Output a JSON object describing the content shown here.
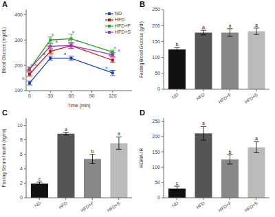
{
  "chart_data": [
    {
      "type": "line",
      "title": "A",
      "xlabel": "Time (min)",
      "ylabel": "Blood Glucose (mg/dL)",
      "x": [
        0,
        30,
        60,
        120
      ],
      "series": [
        {
          "name": "ND",
          "color": "#1a3fcc",
          "values": [
            130,
            228,
            228,
            170
          ],
          "errors": [
            8,
            8,
            8,
            10
          ],
          "annotations": [
            "b",
            "a",
            "a",
            "b"
          ]
        },
        {
          "name": "HFD",
          "color": "#cc1111",
          "values": [
            165,
            255,
            278,
            220
          ],
          "errors": [
            8,
            10,
            12,
            10
          ],
          "annotations": [
            "a",
            "a",
            "a",
            "ab"
          ]
        },
        {
          "name": "HFD+F",
          "color": "#22aa22",
          "values": [
            185,
            300,
            305,
            252
          ],
          "errors": [
            8,
            12,
            18,
            8
          ],
          "annotations": [
            "a",
            "a",
            "a",
            "a"
          ]
        },
        {
          "name": "HFD+S",
          "color": "#9933bb",
          "values": [
            185,
            275,
            278,
            242
          ],
          "errors": [
            8,
            10,
            10,
            8
          ],
          "annotations": [
            "a",
            "a",
            "a",
            "a"
          ]
        }
      ],
      "marker": "square",
      "xlim": [
        -5,
        148
      ],
      "xticks": [
        0,
        30,
        60,
        90,
        120
      ],
      "ylim": [
        100,
        420
      ],
      "yticks": [
        100,
        200,
        300,
        400
      ],
      "legend": "upper right",
      "grid": false
    },
    {
      "type": "bar",
      "title": "B",
      "ylabel": "Fasting Blood Glucose (g/dl)",
      "categories": [
        "ND",
        "HFD",
        "HFD+F",
        "HFD+S"
      ],
      "values": [
        125,
        178,
        178,
        182
      ],
      "errors": [
        6,
        7,
        12,
        10
      ],
      "colors": [
        "#111111",
        "#555555",
        "#888888",
        "#bbbbbb"
      ],
      "annotations": [
        "b",
        "a",
        "a",
        "a"
      ],
      "ylim": [
        0,
        250
      ],
      "yticks": [
        0,
        50,
        100,
        150,
        200,
        250
      ],
      "grid": false
    },
    {
      "type": "bar",
      "title": "C",
      "ylabel": "Fasting Serum Insulin (ng/ml)",
      "categories": [
        "ND",
        "HFD",
        "HFD+F",
        "HFD+S"
      ],
      "values": [
        1.95,
        8.85,
        5.35,
        7.55
      ],
      "errors": [
        0.22,
        0.18,
        0.65,
        0.85
      ],
      "colors": [
        "#111111",
        "#555555",
        "#888888",
        "#bbbbbb"
      ],
      "annotations": [
        "c",
        "a",
        "b",
        "a"
      ],
      "ylim": [
        0,
        11
      ],
      "yticks": [
        0,
        2,
        4,
        6,
        8,
        10
      ],
      "grid": false
    },
    {
      "type": "bar",
      "title": "D",
      "ylabel": "HOMA-IR",
      "categories": [
        "ND",
        "HFD",
        "HFD+F",
        "HFD+S"
      ],
      "values": [
        30,
        210,
        125,
        165
      ],
      "errors": [
        8,
        22,
        15,
        18
      ],
      "colors": [
        "#111111",
        "#555555",
        "#888888",
        "#bbbbbb"
      ],
      "annotations": [
        "c",
        "a",
        "b",
        "a"
      ],
      "ylim": [
        0,
        260
      ],
      "yticks": [
        0,
        50,
        100,
        150,
        200,
        250
      ],
      "grid": false
    }
  ]
}
